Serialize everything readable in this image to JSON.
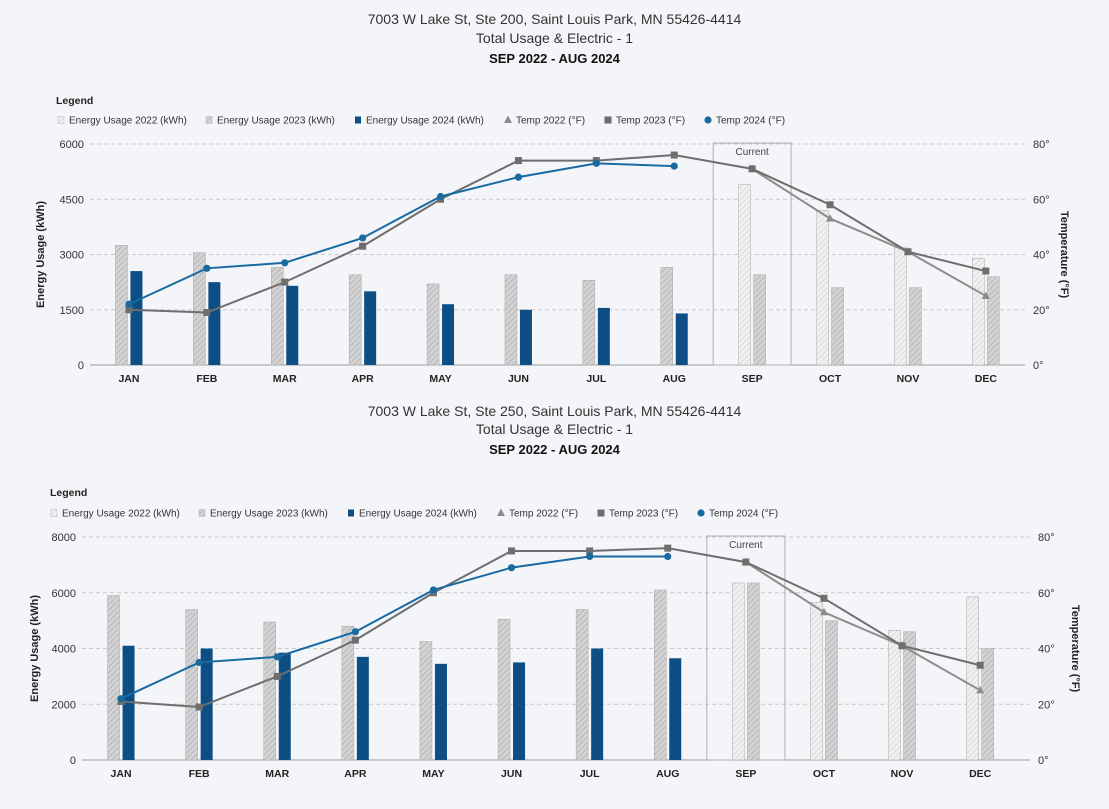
{
  "colors": {
    "bar2022": "#e3e3e3",
    "bar2023": "#c8c8c8",
    "bar2024": "#0d4f85",
    "temp2022": "#8c8c8c",
    "temp2023": "#6e6e6e",
    "temp2024": "#1a6aa2",
    "grid": "#c9c9c9"
  },
  "chart_data": [
    {
      "type": "bar",
      "address": "7003 W Lake St, Ste 200, Saint Louis Park, MN 55426-4414",
      "subtitle": "Total Usage & Electric - 1",
      "range_label": "SEP 2022 - AUG 2024",
      "legend_title": "Legend",
      "legend_items": [
        "Energy Usage 2022 (kWh)",
        "Energy Usage 2023 (kWh)",
        "Energy Usage 2024 (kWh)",
        "Temp 2022 (°F)",
        "Temp 2023 (°F)",
        "Temp 2024 (°F)"
      ],
      "categories": [
        "JAN",
        "FEB",
        "MAR",
        "APR",
        "MAY",
        "JUN",
        "JUL",
        "AUG",
        "SEP",
        "OCT",
        "NOV",
        "DEC"
      ],
      "ylabel": "Energy Usage (kWh)",
      "ylabel_right": "Temperature (°F)",
      "ylim": [
        0,
        6000
      ],
      "yticks": [
        "0",
        "1500",
        "3000",
        "4500",
        "6000"
      ],
      "ylim_right": [
        0,
        80
      ],
      "yticks_right": [
        "0°",
        "20°",
        "40°",
        "60°",
        "80°"
      ],
      "current_label": "Current",
      "current_index": 8,
      "bars": [
        {
          "name": "Energy Usage 2022 (kWh)",
          "key": "bar2022",
          "values": [
            null,
            null,
            null,
            null,
            null,
            null,
            null,
            null,
            4900,
            4200,
            3200,
            2900
          ]
        },
        {
          "name": "Energy Usage 2023 (kWh)",
          "key": "bar2023",
          "values": [
            3250,
            3050,
            2650,
            2450,
            2200,
            2450,
            2300,
            2650,
            2450,
            2100,
            2100,
            2400
          ]
        },
        {
          "name": "Energy Usage 2024 (kWh)",
          "key": "bar2024",
          "values": [
            2550,
            2250,
            2150,
            2000,
            1650,
            1500,
            1550,
            1400,
            null,
            null,
            null,
            null
          ]
        }
      ],
      "lines": [
        {
          "name": "Temp 2022 (°F)",
          "key": "temp2022",
          "marker": "triangle",
          "values": [
            null,
            null,
            null,
            null,
            null,
            null,
            null,
            null,
            71,
            53,
            41,
            25
          ]
        },
        {
          "name": "Temp 2023 (°F)",
          "key": "temp2023",
          "marker": "square",
          "values": [
            20,
            19,
            30,
            43,
            60,
            74,
            74,
            76,
            71,
            58,
            41,
            34
          ]
        },
        {
          "name": "Temp 2024 (°F)",
          "key": "temp2024",
          "marker": "circle",
          "values": [
            22,
            35,
            37,
            46,
            61,
            68,
            73,
            72,
            null,
            null,
            null,
            null
          ]
        }
      ]
    },
    {
      "type": "bar",
      "address": "7003 W Lake St, Ste 250, Saint Louis Park, MN 55426-4414",
      "subtitle": "Total Usage & Electric - 1",
      "range_label": "SEP 2022 - AUG 2024",
      "legend_title": "Legend",
      "legend_items": [
        "Energy Usage 2022 (kWh)",
        "Energy Usage 2023 (kWh)",
        "Energy Usage 2024 (kWh)",
        "Temp 2022 (°F)",
        "Temp 2023 (°F)",
        "Temp 2024 (°F)"
      ],
      "categories": [
        "JAN",
        "FEB",
        "MAR",
        "APR",
        "MAY",
        "JUN",
        "JUL",
        "AUG",
        "SEP",
        "OCT",
        "NOV",
        "DEC"
      ],
      "ylabel": "Energy Usage (kWh)",
      "ylabel_right": "Temperature (°F)",
      "ylim": [
        0,
        8000
      ],
      "yticks": [
        "0",
        "2000",
        "4000",
        "6000",
        "8000"
      ],
      "ylim_right": [
        0,
        80
      ],
      "yticks_right": [
        "0°",
        "20°",
        "40°",
        "60°",
        "80°"
      ],
      "current_label": "Current",
      "current_index": 8,
      "bars": [
        {
          "name": "Energy Usage 2022 (kWh)",
          "key": "bar2022",
          "values": [
            null,
            null,
            null,
            null,
            null,
            null,
            null,
            null,
            6350,
            5650,
            4650,
            5850
          ]
        },
        {
          "name": "Energy Usage 2023 (kWh)",
          "key": "bar2023",
          "values": [
            5900,
            5400,
            4950,
            4800,
            4250,
            5050,
            5400,
            6100,
            6350,
            5000,
            4600,
            4000
          ]
        },
        {
          "name": "Energy Usage 2024 (kWh)",
          "key": "bar2024",
          "values": [
            4100,
            4000,
            3850,
            3700,
            3450,
            3500,
            4000,
            3650,
            null,
            null,
            null,
            null
          ]
        }
      ],
      "lines": [
        {
          "name": "Temp 2022 (°F)",
          "key": "temp2022",
          "marker": "triangle",
          "values": [
            null,
            null,
            null,
            null,
            null,
            null,
            null,
            null,
            71,
            53,
            41,
            25
          ]
        },
        {
          "name": "Temp 2023 (°F)",
          "key": "temp2023",
          "marker": "square",
          "values": [
            21,
            19,
            30,
            43,
            60,
            75,
            75,
            76,
            71,
            58,
            41,
            34
          ]
        },
        {
          "name": "Temp 2024 (°F)",
          "key": "temp2024",
          "marker": "circle",
          "values": [
            22,
            35,
            37,
            46,
            61,
            69,
            73,
            73,
            null,
            null,
            null,
            null
          ]
        }
      ]
    }
  ]
}
